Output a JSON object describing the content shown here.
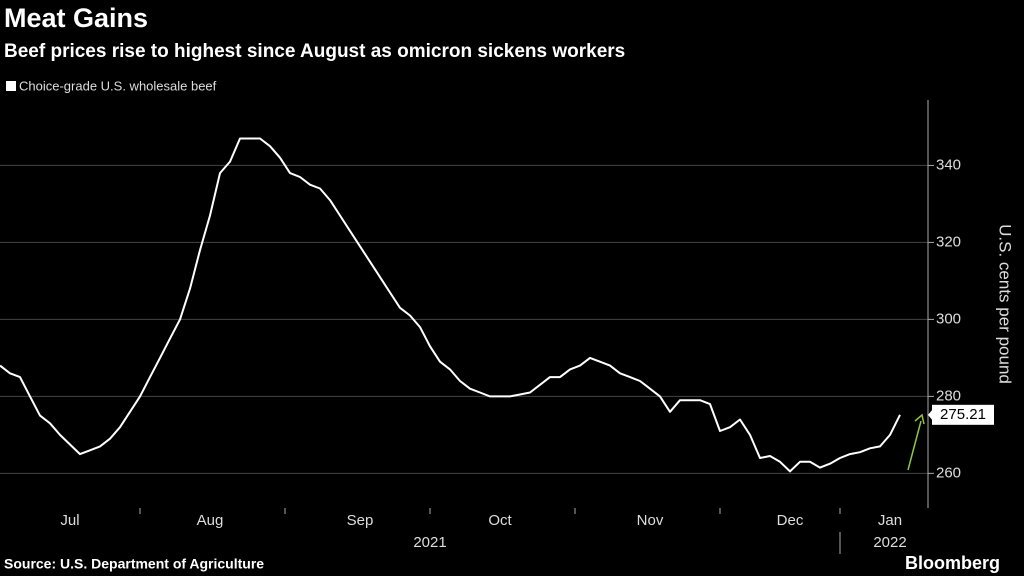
{
  "chart_data": {
    "type": "line",
    "title": "Meat Gains",
    "subtitle": "Beef prices rise to highest since August as omicron sickens workers",
    "y_label": "U.S. cents per pound",
    "source": "Source: U.S. Department of Agriculture",
    "brand": "Bloomberg",
    "categories": [
      null,
      null,
      null,
      null,
      null,
      null,
      null,
      "Jul",
      null,
      null,
      null,
      null,
      null,
      null,
      null,
      null,
      null,
      null,
      null,
      null,
      null,
      "Aug",
      null,
      null,
      null,
      null,
      null,
      null,
      null,
      null,
      null,
      null,
      null,
      null,
      null,
      null,
      "Sep",
      null,
      null,
      null,
      null,
      null,
      null,
      null,
      null,
      null,
      null,
      null,
      null,
      null,
      "Oct",
      null,
      null,
      null,
      null,
      null,
      null,
      null,
      null,
      null,
      null,
      null,
      null,
      null,
      null,
      "Nov",
      null,
      null,
      null,
      null,
      null,
      null,
      null,
      null,
      null,
      null,
      null,
      null,
      null,
      "Dec",
      null,
      null,
      null,
      null,
      null,
      null,
      null,
      null,
      null,
      "Jan",
      null
    ],
    "x_years": [
      null,
      null,
      null,
      null,
      null,
      null,
      null,
      null,
      null,
      null,
      null,
      null,
      null,
      null,
      null,
      null,
      null,
      null,
      null,
      null,
      null,
      null,
      null,
      null,
      null,
      null,
      null,
      null,
      null,
      null,
      null,
      null,
      null,
      null,
      null,
      null,
      null,
      null,
      null,
      null,
      null,
      null,
      null,
      "2021",
      null,
      null,
      null,
      null,
      null,
      null,
      null,
      null,
      null,
      null,
      null,
      null,
      null,
      null,
      null,
      null,
      null,
      null,
      null,
      null,
      null,
      null,
      null,
      null,
      null,
      null,
      null,
      null,
      null,
      null,
      null,
      null,
      null,
      null,
      null,
      null,
      null,
      null,
      null,
      null,
      null,
      null,
      null,
      null,
      null,
      "2022",
      null
    ],
    "series": [
      {
        "name": "Choice-grade U.S. wholesale beef",
        "color": "#ffffff",
        "values": [
          288,
          286,
          285,
          280,
          275,
          273,
          270,
          267.5,
          265,
          266,
          267,
          269,
          272,
          276,
          280,
          285,
          290,
          295,
          300,
          308,
          318,
          327,
          338,
          341,
          347,
          347,
          347,
          345,
          342,
          338,
          337,
          335,
          334,
          331,
          327,
          323,
          319,
          315,
          311,
          307,
          303,
          301,
          298,
          293,
          289,
          287,
          284,
          282,
          281,
          280,
          280,
          280,
          280.5,
          281,
          283,
          285,
          285,
          287,
          288,
          290,
          289,
          288,
          286,
          285,
          284,
          282,
          280,
          276,
          279,
          279,
          279,
          278,
          271,
          272,
          274,
          270,
          264,
          264.5,
          263,
          260.5,
          263,
          263,
          261.5,
          262.5,
          264,
          265,
          265.5,
          266.5,
          267,
          270,
          275.21
        ]
      }
    ],
    "ylim": [
      251,
      357
    ],
    "yticks": [
      260,
      280,
      300,
      320,
      340
    ],
    "grid": true
  }
}
